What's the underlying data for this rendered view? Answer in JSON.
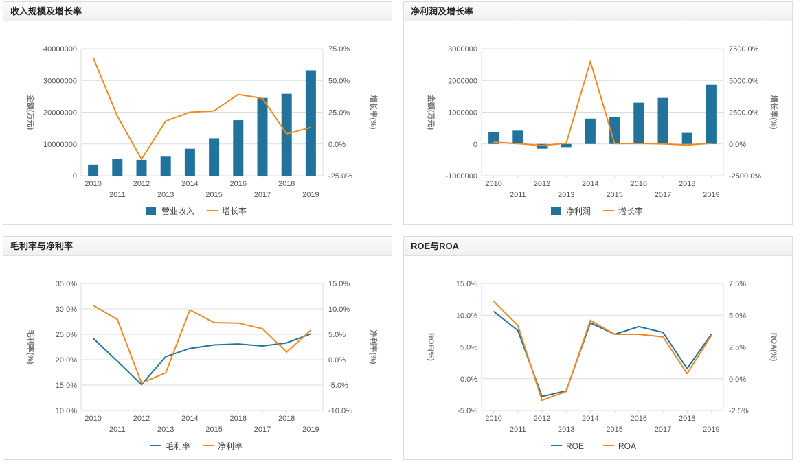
{
  "colors": {
    "bar": "#22739b",
    "line_primary": "#22739b",
    "line_secondary": "#f08a1e",
    "grid": "#dcdcdc",
    "text": "#555555"
  },
  "chart_data": [
    {
      "type": "bar",
      "title": "收入规模及增长率",
      "x": [
        "2010",
        "2011",
        "2012",
        "2013",
        "2014",
        "2015",
        "2016",
        "2017",
        "2018",
        "2019"
      ],
      "ylabel": "金额(万元)",
      "y2label": "增长率(%)",
      "ylim": [
        0,
        40000000
      ],
      "y2lim": [
        -25,
        75
      ],
      "yticks": [
        "40000000",
        "30000000",
        "20000000",
        "10000000",
        "0"
      ],
      "y2ticks": [
        "75.0%",
        "50.0%",
        "25.0%",
        "0.0%",
        "-25.0%"
      ],
      "series": [
        {
          "name": "营业收入",
          "kind": "bar",
          "axis": "left",
          "values": [
            3500000,
            5200000,
            5000000,
            6000000,
            8500000,
            11800000,
            17500000,
            24500000,
            25800000,
            33200000
          ]
        },
        {
          "name": "增长率",
          "kind": "line",
          "axis": "right",
          "values": [
            68,
            22,
            -12,
            18,
            25,
            26,
            39,
            36,
            8,
            13
          ]
        }
      ],
      "legend_position": "bottom",
      "grid": true
    },
    {
      "type": "bar",
      "title": "净利润及增长率",
      "x": [
        "2010",
        "2011",
        "2012",
        "2013",
        "2014",
        "2015",
        "2016",
        "2017",
        "2018",
        "2019"
      ],
      "ylabel": "金额(万元)",
      "y2label": "增长率(%)",
      "ylim": [
        -1000000,
        3000000
      ],
      "y2lim": [
        -2500,
        7500
      ],
      "yticks": [
        "3000000",
        "2000000",
        "1000000",
        "0",
        "-1000000"
      ],
      "y2ticks": [
        "7500.0%",
        "5000.0%",
        "2500.0%",
        "0.0%",
        "-2500.0%"
      ],
      "series": [
        {
          "name": "净利润",
          "kind": "bar",
          "axis": "left",
          "values": [
            380000,
            420000,
            -150000,
            -100000,
            800000,
            840000,
            1300000,
            1450000,
            350000,
            1860000
          ]
        },
        {
          "name": "增长率",
          "kind": "line",
          "axis": "right",
          "values": [
            150,
            30,
            -120,
            50,
            6500,
            30,
            40,
            10,
            -80,
            50
          ]
        }
      ],
      "legend_position": "bottom",
      "grid": true
    },
    {
      "type": "line",
      "title": "毛利率与净利率",
      "x": [
        "2010",
        "2011",
        "2012",
        "2013",
        "2014",
        "2015",
        "2016",
        "2017",
        "2018",
        "2019"
      ],
      "ylabel": "毛利率(%)",
      "y2label": "净利率(%)",
      "ylim": [
        10,
        35
      ],
      "y2lim": [
        -10,
        15
      ],
      "yticks": [
        "35.0%",
        "30.0%",
        "25.0%",
        "20.0%",
        "15.0%",
        "10.0%"
      ],
      "y2ticks": [
        "15.0%",
        "10.0%",
        "5.0%",
        "0.0%",
        "-5.0%",
        "-10.0%"
      ],
      "series": [
        {
          "name": "毛利率",
          "kind": "line",
          "axis": "left",
          "values": [
            24.2,
            19.7,
            15.1,
            20.6,
            22.2,
            22.9,
            23.1,
            22.7,
            23.3,
            25.1
          ]
        },
        {
          "name": "净利率",
          "kind": "line",
          "axis": "right",
          "values": [
            10.7,
            7.9,
            -4.6,
            -2.6,
            9.8,
            7.3,
            7.2,
            6.1,
            1.5,
            5.8
          ]
        }
      ],
      "legend_position": "bottom",
      "grid": true
    },
    {
      "type": "line",
      "title": "ROE与ROA",
      "x": [
        "2010",
        "2011",
        "2012",
        "2013",
        "2014",
        "2015",
        "2016",
        "2017",
        "2018",
        "2019"
      ],
      "ylabel": "ROE(%)",
      "y2label": "ROA(%)",
      "ylim": [
        -5,
        15
      ],
      "y2lim": [
        -2.5,
        7.5
      ],
      "yticks": [
        "15.0%",
        "10.0%",
        "5.0%",
        "0.0%",
        "-5.0%"
      ],
      "y2ticks": [
        "7.5%",
        "5.0%",
        "2.5%",
        "0.0%",
        "-2.5%"
      ],
      "series": [
        {
          "name": "ROE",
          "kind": "line",
          "axis": "left",
          "values": [
            10.6,
            7.6,
            -2.8,
            -1.9,
            8.8,
            7.0,
            8.2,
            7.3,
            1.6,
            7.0
          ]
        },
        {
          "name": "ROA",
          "kind": "line",
          "axis": "right",
          "values": [
            6.1,
            4.2,
            -1.7,
            -1.0,
            4.6,
            3.5,
            3.5,
            3.3,
            0.4,
            3.4
          ]
        }
      ],
      "legend_position": "bottom",
      "grid": true
    }
  ]
}
